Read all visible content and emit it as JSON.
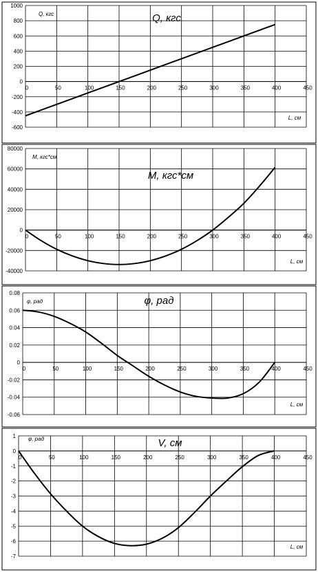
{
  "chart_data": [
    {
      "type": "line",
      "title": "Q, кгс",
      "ylabel": "Q, кгс",
      "xlabel": "L, см",
      "xlim": [
        0,
        450
      ],
      "ylim": [
        -600,
        1000
      ],
      "xticks": [
        "0",
        "50",
        "100",
        "150",
        "200",
        "250",
        "300",
        "350",
        "400",
        "450"
      ],
      "yticks": [
        "1000",
        "800",
        "600",
        "400",
        "200",
        "0",
        "-200",
        "-400",
        "-600"
      ],
      "grid": true,
      "series": [
        {
          "x": [
            0,
            50,
            100,
            150,
            200,
            250,
            300,
            350,
            400
          ],
          "y": [
            -450,
            -300,
            -150,
            0,
            150,
            300,
            450,
            600,
            750
          ]
        }
      ]
    },
    {
      "type": "line",
      "title": "M, кгс*см",
      "ylabel": "M, кгс*см",
      "xlabel": "L, см",
      "xlim": [
        0,
        450
      ],
      "ylim": [
        -40000,
        80000
      ],
      "xticks": [
        "0",
        "50",
        "100",
        "150",
        "200",
        "250",
        "300",
        "350",
        "400",
        "450"
      ],
      "yticks": [
        "80000",
        "60000",
        "40000",
        "20000",
        "0",
        "-20000",
        "-40000"
      ],
      "grid": true,
      "series": [
        {
          "x": [
            0,
            25,
            50,
            75,
            100,
            125,
            150,
            175,
            200,
            225,
            250,
            275,
            300,
            325,
            350,
            375,
            400
          ],
          "y": [
            0,
            -10300,
            -18800,
            -25300,
            -30000,
            -32800,
            -33800,
            -32800,
            -30000,
            -25300,
            -18800,
            -10300,
            0,
            12500,
            26300,
            43100,
            61500
          ]
        }
      ]
    },
    {
      "type": "line",
      "title": "φ, рад",
      "ylabel": "φ, рад",
      "xlabel": "L, см",
      "xlim": [
        0,
        450
      ],
      "ylim": [
        -0.06,
        0.08
      ],
      "xticks": [
        "0",
        "50",
        "100",
        "150",
        "200",
        "250",
        "300",
        "350",
        "400",
        "450"
      ],
      "yticks": [
        "0.08",
        "0.06",
        "0.04",
        "0.02",
        "0",
        "-0.02",
        "-0.04",
        "-0.06"
      ],
      "grid": true,
      "series": [
        {
          "x": [
            0,
            25,
            50,
            75,
            100,
            125,
            150,
            175,
            200,
            225,
            250,
            275,
            300,
            325,
            350,
            375,
            400
          ],
          "y": [
            0.06,
            0.058,
            0.053,
            0.045,
            0.035,
            0.022,
            0.008,
            -0.004,
            -0.016,
            -0.026,
            -0.034,
            -0.039,
            -0.041,
            -0.041,
            -0.036,
            -0.023,
            0
          ]
        }
      ]
    },
    {
      "type": "line",
      "title": "V, см",
      "ylabel": "φ, рад",
      "xlabel": "L, см",
      "xlim": [
        0,
        450
      ],
      "ylim": [
        -7,
        1
      ],
      "xticks": [
        "0",
        "50",
        "100",
        "150",
        "200",
        "250",
        "300",
        "350",
        "400",
        "450"
      ],
      "yticks": [
        "1",
        "0",
        "-1",
        "-2",
        "-3",
        "-4",
        "-5",
        "-6",
        "-7"
      ],
      "grid": true,
      "series": [
        {
          "x": [
            0,
            25,
            50,
            75,
            100,
            125,
            150,
            175,
            200,
            225,
            250,
            275,
            300,
            325,
            350,
            375,
            400
          ],
          "y": [
            0,
            -1.5,
            -2.85,
            -4.0,
            -5.0,
            -5.7,
            -6.15,
            -6.3,
            -6.2,
            -5.8,
            -5.1,
            -4.1,
            -3.0,
            -2.0,
            -1.05,
            -0.3,
            0
          ]
        }
      ]
    }
  ]
}
